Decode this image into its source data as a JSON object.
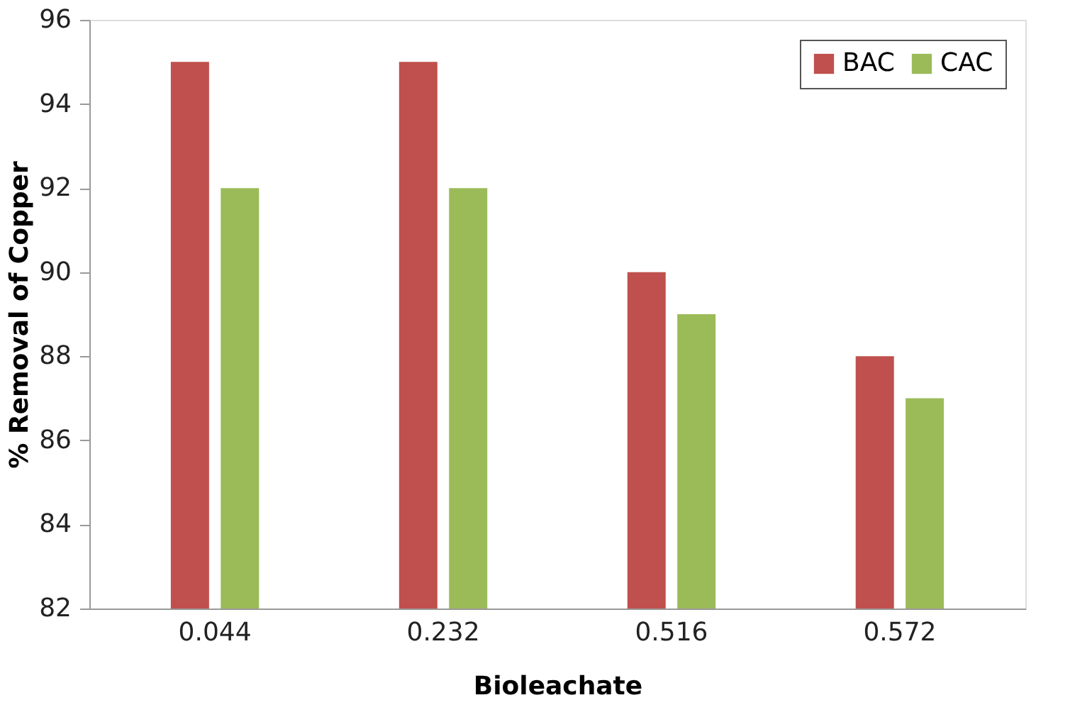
{
  "chart_data": {
    "type": "bar",
    "xlabel": "Bioleachate",
    "ylabel": "% Removal of Copper",
    "categories": [
      "0.044",
      "0.232",
      "0.516",
      "0.572"
    ],
    "series": [
      {
        "name": "BAC",
        "color": "#c0504d",
        "values": [
          95,
          95,
          90,
          88
        ]
      },
      {
        "name": "CAC",
        "color": "#9bbb59",
        "values": [
          92,
          92,
          89,
          87
        ]
      }
    ],
    "ylim": [
      82,
      96
    ],
    "yticks": [
      82,
      84,
      86,
      88,
      90,
      92,
      94,
      96
    ],
    "grid": false,
    "legend": "top right"
  }
}
